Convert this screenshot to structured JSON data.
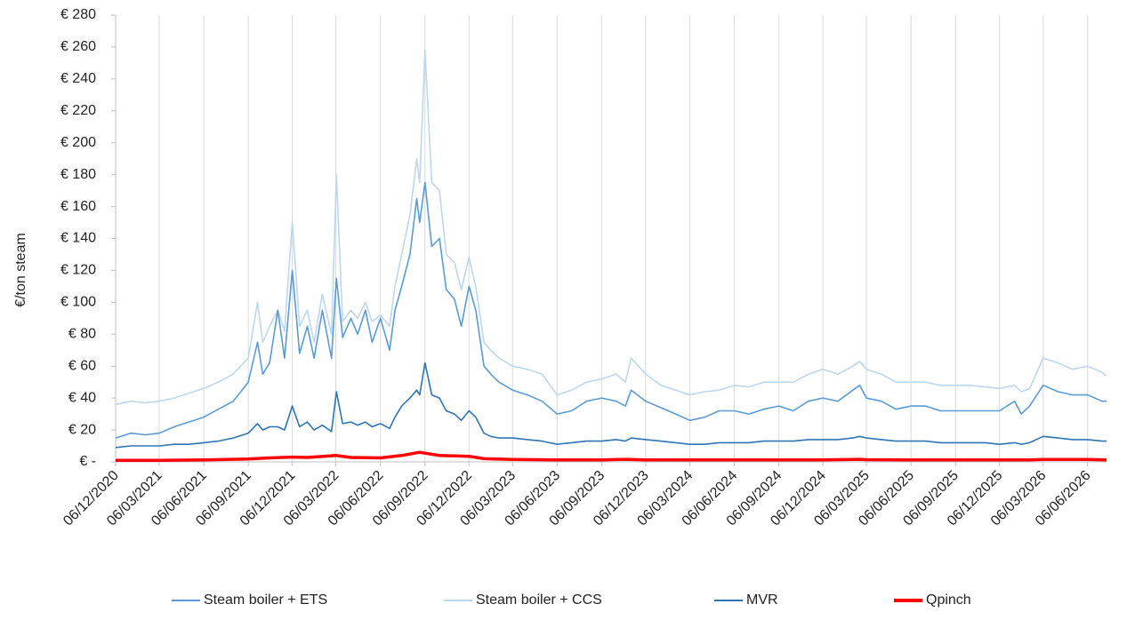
{
  "chart_data": {
    "type": "line",
    "ylabel": "€/ton steam",
    "ylim": [
      0,
      280
    ],
    "y_ticks": [
      0,
      20,
      40,
      60,
      80,
      100,
      120,
      140,
      160,
      180,
      200,
      220,
      240,
      260,
      280
    ],
    "y_tick_labels": [
      "€ -",
      "€ 20",
      "€ 40",
      "€ 60",
      "€ 80",
      "€ 100",
      "€ 120",
      "€ 140",
      "€ 160",
      "€ 180",
      "€ 200",
      "€ 220",
      "€ 240",
      "€ 260",
      "€ 280"
    ],
    "xlim": [
      "2020-12-06",
      "2026-07-15"
    ],
    "x_ticks": [
      "2020-12-06",
      "2021-03-06",
      "2021-06-06",
      "2021-09-06",
      "2021-12-06",
      "2022-03-06",
      "2022-06-06",
      "2022-09-06",
      "2022-12-06",
      "2023-03-06",
      "2023-06-06",
      "2023-09-06",
      "2023-12-06",
      "2024-03-06",
      "2024-06-06",
      "2024-09-06",
      "2024-12-06",
      "2025-03-06",
      "2025-06-06",
      "2025-09-06",
      "2025-12-06",
      "2026-03-06",
      "2026-06-06"
    ],
    "x_tick_labels": [
      "06/12/2020",
      "06/03/2021",
      "06/06/2021",
      "06/09/2021",
      "06/12/2021",
      "06/03/2022",
      "06/06/2022",
      "06/09/2022",
      "06/12/2022",
      "06/03/2023",
      "06/06/2023",
      "06/09/2023",
      "06/12/2023",
      "06/03/2024",
      "06/06/2024",
      "06/09/2024",
      "06/12/2024",
      "06/03/2025",
      "06/06/2025",
      "06/09/2025",
      "06/12/2025",
      "06/03/2026",
      "06/06/2026"
    ],
    "grid": "vertical",
    "legend_position": "bottom",
    "series": [
      {
        "name": "Steam boiler + ETS",
        "color": "#5b9bd5",
        "x": [
          "2020-12-06",
          "2021-01-06",
          "2021-02-06",
          "2021-03-06",
          "2021-04-06",
          "2021-05-06",
          "2021-06-06",
          "2021-07-06",
          "2021-08-06",
          "2021-09-06",
          "2021-09-25",
          "2021-10-06",
          "2021-10-20",
          "2021-11-06",
          "2021-11-20",
          "2021-12-06",
          "2021-12-21",
          "2022-01-06",
          "2022-01-20",
          "2022-02-06",
          "2022-02-25",
          "2022-03-07",
          "2022-03-20",
          "2022-04-06",
          "2022-04-20",
          "2022-05-06",
          "2022-05-20",
          "2022-06-06",
          "2022-06-25",
          "2022-07-06",
          "2022-07-20",
          "2022-08-06",
          "2022-08-20",
          "2022-08-26",
          "2022-09-06",
          "2022-09-20",
          "2022-10-06",
          "2022-10-20",
          "2022-11-06",
          "2022-11-20",
          "2022-12-06",
          "2022-12-20",
          "2023-01-06",
          "2023-01-20",
          "2023-02-06",
          "2023-03-06",
          "2023-04-06",
          "2023-05-06",
          "2023-06-06",
          "2023-07-06",
          "2023-08-06",
          "2023-09-06",
          "2023-10-06",
          "2023-10-25",
          "2023-11-06",
          "2023-12-06",
          "2024-01-06",
          "2024-02-06",
          "2024-03-06",
          "2024-04-06",
          "2024-05-06",
          "2024-06-06",
          "2024-07-06",
          "2024-08-06",
          "2024-09-06",
          "2024-10-06",
          "2024-11-06",
          "2024-12-06",
          "2025-01-06",
          "2025-02-06",
          "2025-02-20",
          "2025-03-06",
          "2025-04-06",
          "2025-05-06",
          "2025-06-06",
          "2025-07-06",
          "2025-08-06",
          "2025-09-06",
          "2025-10-06",
          "2025-11-06",
          "2025-12-06",
          "2026-01-06",
          "2026-01-20",
          "2026-02-06",
          "2026-03-06",
          "2026-04-06",
          "2026-05-06",
          "2026-06-06",
          "2026-07-06",
          "2026-07-15"
        ],
        "values": [
          15,
          18,
          17,
          18,
          22,
          25,
          28,
          33,
          38,
          50,
          75,
          55,
          62,
          95,
          65,
          120,
          68,
          85,
          65,
          95,
          65,
          115,
          78,
          90,
          80,
          95,
          75,
          90,
          70,
          95,
          110,
          130,
          165,
          150,
          175,
          135,
          140,
          108,
          102,
          85,
          110,
          95,
          60,
          55,
          50,
          45,
          42,
          38,
          30,
          32,
          38,
          40,
          38,
          35,
          45,
          38,
          34,
          30,
          26,
          28,
          32,
          32,
          30,
          33,
          35,
          32,
          38,
          40,
          38,
          45,
          48,
          40,
          38,
          33,
          35,
          35,
          32,
          32,
          32,
          32,
          32,
          38,
          30,
          35,
          48,
          44,
          42,
          42,
          38,
          38
        ]
      },
      {
        "name": "Steam boiler + CCS",
        "color": "#bdd7ee",
        "x": [
          "2020-12-06",
          "2021-01-06",
          "2021-02-06",
          "2021-03-06",
          "2021-04-06",
          "2021-05-06",
          "2021-06-06",
          "2021-07-06",
          "2021-08-06",
          "2021-09-06",
          "2021-09-25",
          "2021-10-06",
          "2021-10-20",
          "2021-11-06",
          "2021-11-20",
          "2021-12-06",
          "2021-12-21",
          "2022-01-06",
          "2022-01-20",
          "2022-02-06",
          "2022-02-25",
          "2022-03-07",
          "2022-03-20",
          "2022-04-06",
          "2022-04-20",
          "2022-05-06",
          "2022-05-20",
          "2022-06-06",
          "2022-06-25",
          "2022-07-06",
          "2022-07-20",
          "2022-08-06",
          "2022-08-20",
          "2022-08-26",
          "2022-09-06",
          "2022-09-20",
          "2022-10-06",
          "2022-10-20",
          "2022-11-06",
          "2022-11-20",
          "2022-12-06",
          "2022-12-20",
          "2023-01-06",
          "2023-01-20",
          "2023-02-06",
          "2023-03-06",
          "2023-04-06",
          "2023-05-06",
          "2023-06-06",
          "2023-07-06",
          "2023-08-06",
          "2023-09-06",
          "2023-10-06",
          "2023-10-25",
          "2023-11-06",
          "2023-12-06",
          "2024-01-06",
          "2024-02-06",
          "2024-03-06",
          "2024-04-06",
          "2024-05-06",
          "2024-06-06",
          "2024-07-06",
          "2024-08-06",
          "2024-09-06",
          "2024-10-06",
          "2024-11-06",
          "2024-12-06",
          "2025-01-06",
          "2025-02-06",
          "2025-02-20",
          "2025-03-06",
          "2025-04-06",
          "2025-05-06",
          "2025-06-06",
          "2025-07-06",
          "2025-08-06",
          "2025-09-06",
          "2025-10-06",
          "2025-11-06",
          "2025-12-06",
          "2026-01-06",
          "2026-01-20",
          "2026-02-06",
          "2026-03-06",
          "2026-04-06",
          "2026-05-06",
          "2026-06-06",
          "2026-07-06",
          "2026-07-15"
        ],
        "values": [
          36,
          38,
          37,
          38,
          40,
          43,
          46,
          50,
          55,
          65,
          100,
          75,
          85,
          95,
          82,
          150,
          85,
          95,
          75,
          105,
          80,
          180,
          88,
          95,
          90,
          100,
          88,
          92,
          85,
          110,
          130,
          155,
          190,
          175,
          258,
          175,
          170,
          130,
          125,
          108,
          128,
          110,
          75,
          70,
          65,
          60,
          58,
          55,
          42,
          45,
          50,
          52,
          55,
          50,
          65,
          55,
          48,
          45,
          42,
          44,
          45,
          48,
          47,
          50,
          50,
          50,
          55,
          58,
          55,
          60,
          63,
          58,
          55,
          50,
          50,
          50,
          48,
          48,
          48,
          47,
          46,
          48,
          44,
          46,
          65,
          62,
          58,
          60,
          56,
          54
        ]
      },
      {
        "name": "MVR",
        "color": "#2e75b6",
        "x": [
          "2020-12-06",
          "2021-01-06",
          "2021-02-06",
          "2021-03-06",
          "2021-04-06",
          "2021-05-06",
          "2021-06-06",
          "2021-07-06",
          "2021-08-06",
          "2021-09-06",
          "2021-09-25",
          "2021-10-06",
          "2021-10-20",
          "2021-11-06",
          "2021-11-20",
          "2021-12-06",
          "2021-12-21",
          "2022-01-06",
          "2022-01-20",
          "2022-02-06",
          "2022-02-25",
          "2022-03-07",
          "2022-03-20",
          "2022-04-06",
          "2022-04-20",
          "2022-05-06",
          "2022-05-20",
          "2022-06-06",
          "2022-06-25",
          "2022-07-06",
          "2022-07-20",
          "2022-08-06",
          "2022-08-20",
          "2022-08-26",
          "2022-09-06",
          "2022-09-20",
          "2022-10-06",
          "2022-10-20",
          "2022-11-06",
          "2022-11-20",
          "2022-12-06",
          "2022-12-20",
          "2023-01-06",
          "2023-01-20",
          "2023-02-06",
          "2023-03-06",
          "2023-04-06",
          "2023-05-06",
          "2023-06-06",
          "2023-07-06",
          "2023-08-06",
          "2023-09-06",
          "2023-10-06",
          "2023-10-25",
          "2023-11-06",
          "2023-12-06",
          "2024-01-06",
          "2024-02-06",
          "2024-03-06",
          "2024-04-06",
          "2024-05-06",
          "2024-06-06",
          "2024-07-06",
          "2024-08-06",
          "2024-09-06",
          "2024-10-06",
          "2024-11-06",
          "2024-12-06",
          "2025-01-06",
          "2025-02-06",
          "2025-02-20",
          "2025-03-06",
          "2025-04-06",
          "2025-05-06",
          "2025-06-06",
          "2025-07-06",
          "2025-08-06",
          "2025-09-06",
          "2025-10-06",
          "2025-11-06",
          "2025-12-06",
          "2026-01-06",
          "2026-01-20",
          "2026-02-06",
          "2026-03-06",
          "2026-04-06",
          "2026-05-06",
          "2026-06-06",
          "2026-07-06",
          "2026-07-15"
        ],
        "values": [
          9,
          10,
          10,
          10,
          11,
          11,
          12,
          13,
          15,
          18,
          24,
          20,
          22,
          22,
          20,
          35,
          22,
          25,
          20,
          23,
          19,
          44,
          24,
          25,
          23,
          25,
          22,
          24,
          21,
          28,
          35,
          40,
          45,
          42,
          62,
          42,
          40,
          32,
          30,
          26,
          32,
          28,
          18,
          16,
          15,
          15,
          14,
          13,
          11,
          12,
          13,
          13,
          14,
          13,
          15,
          14,
          13,
          12,
          11,
          11,
          12,
          12,
          12,
          13,
          13,
          13,
          14,
          14,
          14,
          15,
          16,
          15,
          14,
          13,
          13,
          13,
          12,
          12,
          12,
          12,
          11,
          12,
          11,
          12,
          16,
          15,
          14,
          14,
          13,
          13
        ]
      },
      {
        "name": "Qpinch",
        "color": "#ff0000",
        "x": [
          "2020-12-06",
          "2021-03-06",
          "2021-06-06",
          "2021-09-06",
          "2021-10-20",
          "2021-12-06",
          "2022-01-06",
          "2022-03-07",
          "2022-04-06",
          "2022-06-06",
          "2022-07-20",
          "2022-08-26",
          "2022-10-06",
          "2022-12-06",
          "2023-01-06",
          "2023-03-06",
          "2023-06-06",
          "2023-09-06",
          "2023-10-25",
          "2023-12-06",
          "2024-03-06",
          "2024-06-06",
          "2024-09-06",
          "2024-12-06",
          "2025-02-20",
          "2025-03-06",
          "2025-06-06",
          "2025-09-06",
          "2025-12-06",
          "2026-02-06",
          "2026-03-06",
          "2026-06-06",
          "2026-07-15"
        ],
        "values": [
          1,
          1,
          1.2,
          1.8,
          2.5,
          3,
          2.8,
          4,
          2.8,
          2.5,
          4,
          6,
          4,
          3.5,
          2,
          1.5,
          1.2,
          1.2,
          1.6,
          1.3,
          1.2,
          1.2,
          1.2,
          1.3,
          1.6,
          1.4,
          1.2,
          1.2,
          1.2,
          1.2,
          1.5,
          1.5,
          1.3
        ]
      }
    ]
  }
}
